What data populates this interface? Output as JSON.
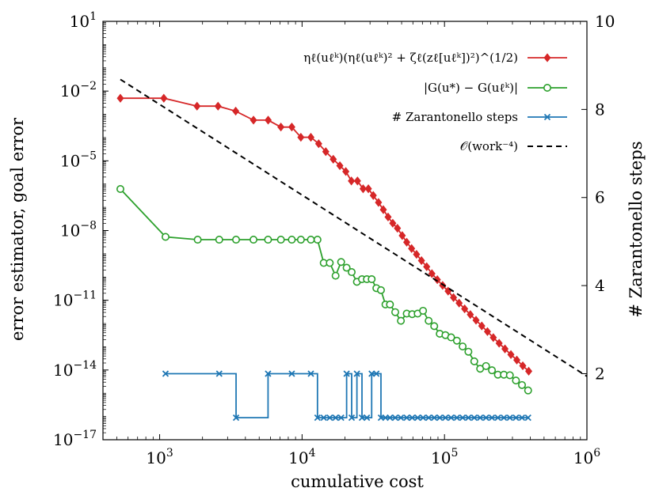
{
  "chart_data": {
    "type": "line",
    "xlabel": "cumulative cost",
    "ylabel_left": "error estimator, goal error",
    "ylabel_right": "# Zarantonello steps",
    "x_scale": "log",
    "y_left_scale": "log",
    "xlim": [
      400,
      1000000
    ],
    "ylim_left": [
      1e-17,
      10
    ],
    "ylim_right": [
      0.5,
      10
    ],
    "x_ticks": [
      {
        "value": 1000,
        "base": "10",
        "exp": "3"
      },
      {
        "value": 10000,
        "base": "10",
        "exp": "4"
      },
      {
        "value": 100000,
        "base": "10",
        "exp": "5"
      },
      {
        "value": 1000000,
        "base": "10",
        "exp": "6"
      }
    ],
    "y_left_ticks": [
      {
        "value": 10,
        "base": "10",
        "exp": "1"
      },
      {
        "value": 0.01,
        "base": "10",
        "exp": "−2"
      },
      {
        "value": 1e-05,
        "base": "10",
        "exp": "−5"
      },
      {
        "value": 1e-08,
        "base": "10",
        "exp": "−8"
      },
      {
        "value": 1e-11,
        "base": "10",
        "exp": "−11"
      },
      {
        "value": 1e-14,
        "base": "10",
        "exp": "−14"
      },
      {
        "value": 1e-17,
        "base": "10",
        "exp": "−17"
      }
    ],
    "y_right_ticks": [
      {
        "value": 2,
        "label": "2"
      },
      {
        "value": 4,
        "label": "4"
      },
      {
        "value": 6,
        "label": "6"
      },
      {
        "value": 8,
        "label": "8"
      },
      {
        "value": 10,
        "label": "10"
      }
    ],
    "legend_position": "top-right",
    "series": [
      {
        "name": "ηℓ(uℓᵏ)(ηℓ(uℓᵏ)² + ζℓ(zℓ[uℓᵏ])²)^(1/2)",
        "axis": "left",
        "color": "#d62728",
        "marker": "diamond",
        "dash": "solid",
        "x": [
          530,
          1070,
          1830,
          2570,
          3420,
          4560,
          5780,
          7100,
          8470,
          9810,
          11530,
          13080,
          14670,
          16560,
          18420,
          20280,
          22200,
          24490,
          26830,
          29210,
          31620,
          34410,
          37210,
          40170,
          43330,
          46740,
          50500,
          54300,
          58750,
          63640,
          68930,
          74990,
          81590,
          89050,
          97060,
          106000,
          115700,
          126700,
          138500,
          151900,
          166500,
          182700,
          200300,
          220200,
          241900,
          265800,
          292600,
          322000,
          354500,
          390300
        ],
        "y": [
          0.00493,
          0.00493,
          0.00225,
          0.00225,
          0.00137,
          0.000562,
          0.000562,
          0.000283,
          0.000283,
          0.000103,
          0.000103,
          5.43e-05,
          2.48e-05,
          1.17e-05,
          6.19e-06,
          3.47e-06,
          1.36e-06,
          1.36e-06,
          6.27e-07,
          6.27e-07,
          3.22e-07,
          1.61e-07,
          7.93e-08,
          3.82e-08,
          2.06e-08,
          1.25e-08,
          6.06e-09,
          3.14e-09,
          1.68e-09,
          9.42e-10,
          5.1e-10,
          2.78e-10,
          1.4e-10,
          7.69e-11,
          4.35e-11,
          2.47e-11,
          1.31e-11,
          7.56e-12,
          4.28e-12,
          2.43e-12,
          1.39e-12,
          7.86e-13,
          4.5e-13,
          2.48e-13,
          1.42e-13,
          8.07e-14,
          4.62e-14,
          2.69e-14,
          1.52e-14,
          8.9e-15
        ]
      },
      {
        "name": "|G(u*) − G(uℓᵏ)|",
        "axis": "left",
        "color": "#2ca02c",
        "marker": "circle",
        "dash": "solid",
        "x": [
          530,
          1100,
          1850,
          2620,
          3440,
          4560,
          5770,
          7100,
          8470,
          9810,
          11530,
          12830,
          14190,
          15650,
          17190,
          18800,
          20550,
          22300,
          24270,
          26340,
          28510,
          30810,
          33240,
          35800,
          38500,
          41400,
          45100,
          49400,
          54300,
          59300,
          64800,
          70700,
          77400,
          84700,
          92600,
          101500,
          111300,
          122200,
          134100,
          147200,
          161800,
          178000,
          195700,
          215300,
          237000,
          261200,
          287700,
          317400,
          350000,
          386400
        ],
        "y": [
          6.11e-07,
          5.35e-09,
          4.05e-09,
          4.05e-09,
          4.05e-09,
          4.05e-09,
          4.05e-09,
          4.05e-09,
          4.05e-09,
          4.05e-09,
          4.05e-09,
          4.05e-09,
          4.05e-10,
          4.05e-10,
          1.14e-10,
          4.45e-10,
          2.51e-10,
          1.63e-10,
          6.2e-11,
          8.1e-11,
          8.1e-11,
          8.1e-11,
          3.33e-11,
          2.72e-11,
          6.6e-12,
          6.6e-12,
          3.08e-12,
          1.31e-12,
          2.68e-12,
          2.52e-12,
          2.67e-12,
          3.53e-12,
          1.31e-12,
          7.72e-13,
          3.62e-13,
          3.17e-13,
          2.54e-13,
          1.83e-13,
          1.03e-13,
          6.13e-14,
          2.36e-14,
          1.13e-14,
          1.48e-14,
          9.73e-15,
          6.29e-15,
          6.29e-15,
          5.95e-15,
          3.53e-15,
          2.26e-15,
          1.32e-15
        ]
      },
      {
        "name": "# Zarantonello steps",
        "axis": "right",
        "color": "#1f77b4",
        "marker": "cross",
        "dash": "solid",
        "step": true,
        "x": [
          1100,
          2620,
          3440,
          5770,
          8470,
          11530,
          12830,
          14190,
          15650,
          17190,
          18800,
          20550,
          22300,
          24270,
          26340,
          28510,
          30810,
          33240,
          35800,
          38500,
          41400,
          45100,
          49400,
          54300,
          59300,
          64800,
          70700,
          77400,
          84700,
          92600,
          101500,
          111300,
          122200,
          134100,
          147200,
          161800,
          178000,
          195700,
          215300,
          237000,
          261200,
          287700,
          317400,
          350000,
          386400
        ],
        "y": [
          2,
          2,
          1,
          2,
          2,
          2,
          1,
          1,
          1,
          1,
          1,
          2,
          1,
          2,
          1,
          1,
          2,
          2,
          1,
          1,
          1,
          1,
          1,
          1,
          1,
          1,
          1,
          1,
          1,
          1,
          1,
          1,
          1,
          1,
          1,
          1,
          1,
          1,
          1,
          1,
          1,
          1,
          1,
          1,
          1
        ]
      },
      {
        "name": "𝒪(work⁻⁴)",
        "axis": "left",
        "color": "#000000",
        "marker": "none",
        "dash": "dashed",
        "x": [
          530,
          1000000
        ],
        "y": [
          0.0317,
          5.36e-15
        ]
      }
    ]
  }
}
